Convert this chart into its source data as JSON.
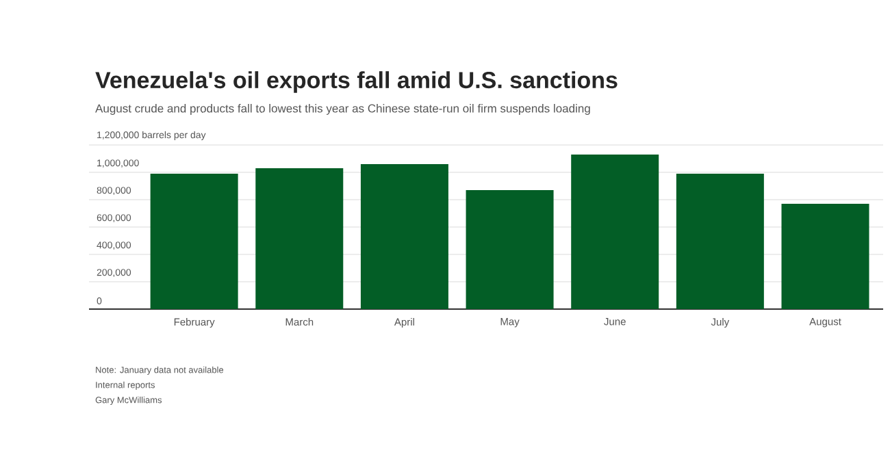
{
  "chart_data": {
    "type": "bar",
    "title": "Venezuela's oil exports fall amid U.S. sanctions",
    "subtitle": "August crude and products fall to lowest this year as Chinese state-run oil firm suspends loading",
    "categories": [
      "February",
      "March",
      "April",
      "May",
      "June",
      "July",
      "August"
    ],
    "values": [
      990000,
      1030000,
      1060000,
      870000,
      1130000,
      990000,
      770000
    ],
    "color": "#035e26",
    "ylim": [
      0,
      1200000
    ],
    "yticks": [
      {
        "value": 0,
        "label": "0"
      },
      {
        "value": 200000,
        "label": "200,000"
      },
      {
        "value": 400000,
        "label": "400,000"
      },
      {
        "value": 600000,
        "label": "600,000"
      },
      {
        "value": 800000,
        "label": "800,000"
      },
      {
        "value": 1000000,
        "label": "1,000,000"
      },
      {
        "value": 1200000,
        "label": "1,200,000 barrels per day"
      }
    ],
    "grid": "y",
    "annotations": [
      "Note: January data not available",
      "Internal reports",
      "Gary McWilliams"
    ]
  }
}
